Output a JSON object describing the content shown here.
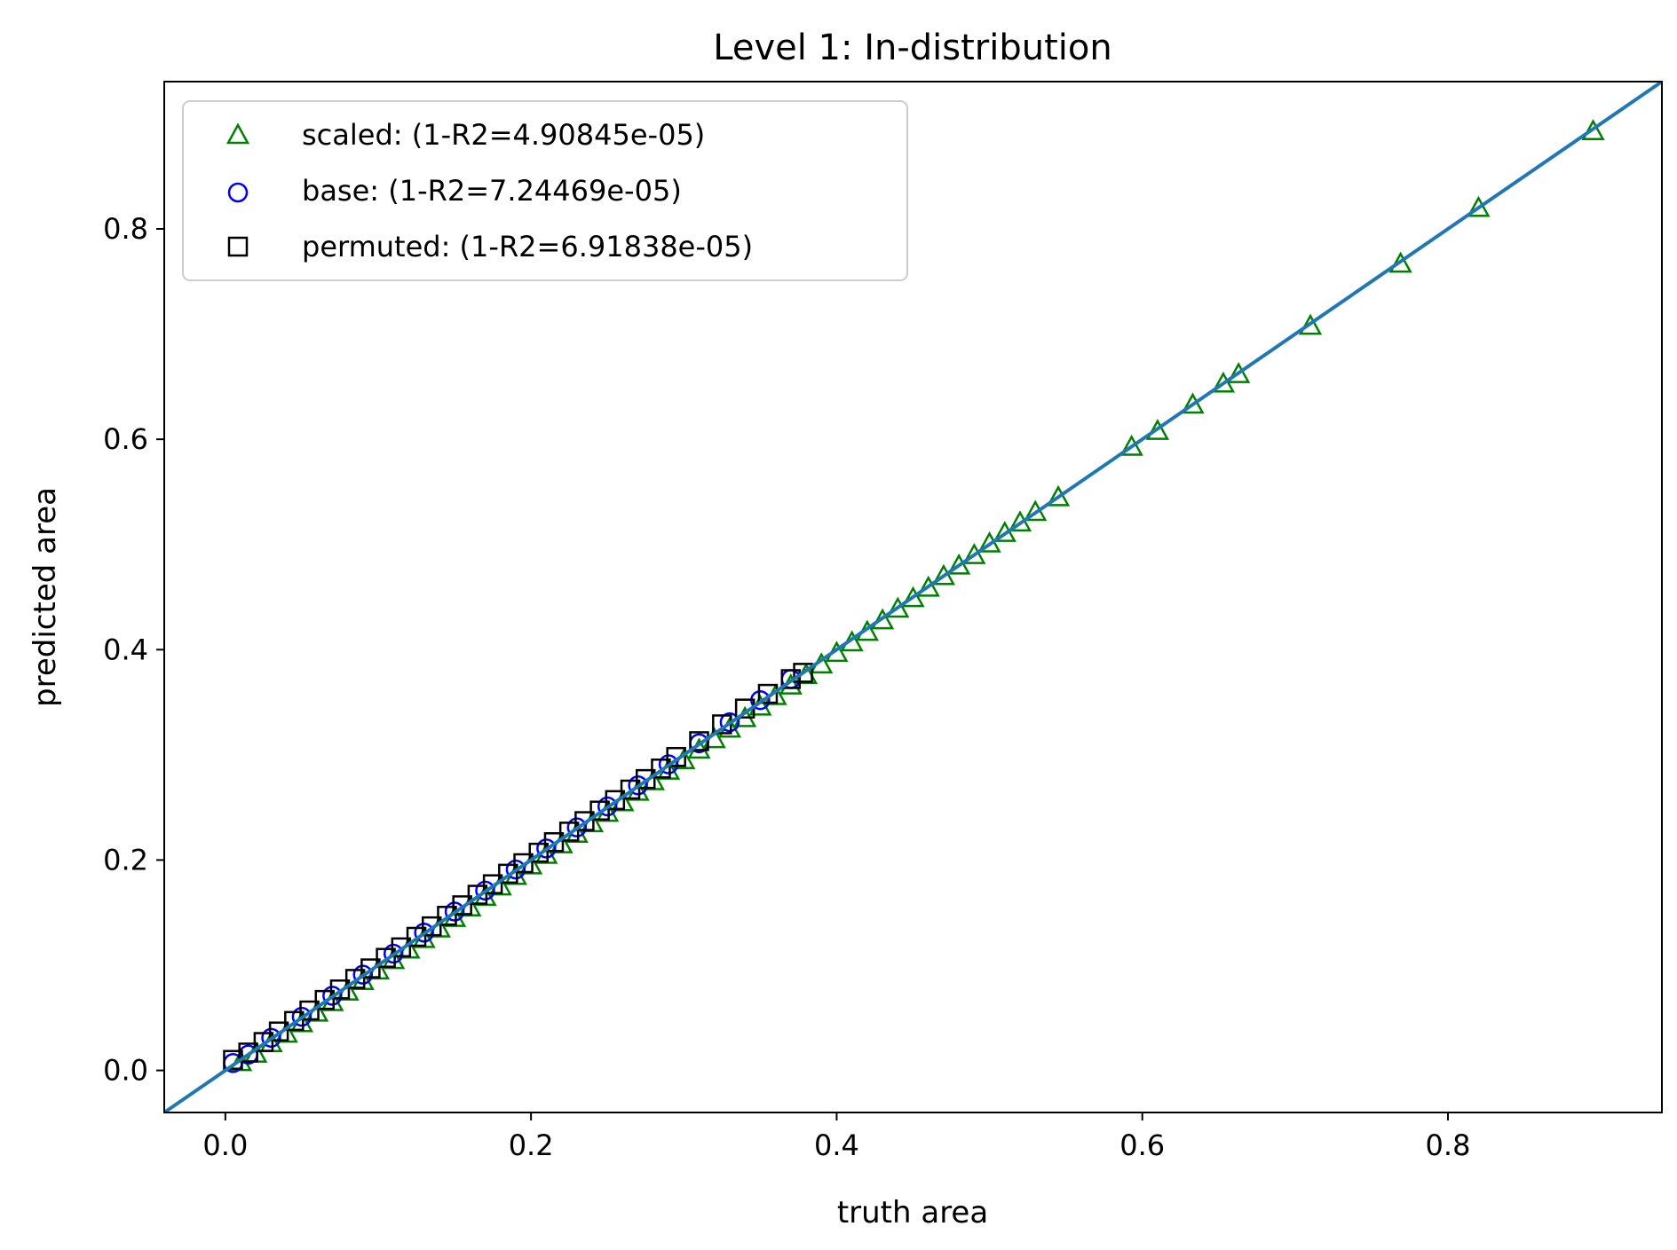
{
  "chart_data": {
    "type": "scatter",
    "title": "Level 1: In-distribution",
    "xlabel": "truth area",
    "ylabel": "predicted area",
    "xlim": [
      -0.04,
      0.94
    ],
    "ylim": [
      -0.04,
      0.94
    ],
    "xticks": [
      "0.0",
      "0.2",
      "0.4",
      "0.6",
      "0.8"
    ],
    "yticks": [
      "0.0",
      "0.2",
      "0.4",
      "0.6",
      "0.8"
    ],
    "xtick_values": [
      0.0,
      0.2,
      0.4,
      0.6,
      0.8
    ],
    "ytick_values": [
      0.0,
      0.2,
      0.4,
      0.6,
      0.8
    ],
    "grid": false,
    "legend_position": "top-left",
    "reference_line": {
      "from": [
        -0.04,
        -0.04
      ],
      "to": [
        0.94,
        0.94
      ],
      "color": "#1f77b4"
    },
    "series": [
      {
        "name": "scaled: (1-R2=4.90845e-05)",
        "marker": "triangle",
        "color": "#008000",
        "points": [
          [
            0.01,
            0.008
          ],
          [
            0.02,
            0.016
          ],
          [
            0.03,
            0.026
          ],
          [
            0.04,
            0.035
          ],
          [
            0.05,
            0.045
          ],
          [
            0.06,
            0.055
          ],
          [
            0.07,
            0.065
          ],
          [
            0.08,
            0.075
          ],
          [
            0.09,
            0.085
          ],
          [
            0.1,
            0.095
          ],
          [
            0.11,
            0.105
          ],
          [
            0.12,
            0.115
          ],
          [
            0.13,
            0.125
          ],
          [
            0.14,
            0.135
          ],
          [
            0.15,
            0.145
          ],
          [
            0.16,
            0.155
          ],
          [
            0.17,
            0.165
          ],
          [
            0.18,
            0.175
          ],
          [
            0.19,
            0.185
          ],
          [
            0.2,
            0.195
          ],
          [
            0.21,
            0.205
          ],
          [
            0.22,
            0.215
          ],
          [
            0.23,
            0.225
          ],
          [
            0.24,
            0.235
          ],
          [
            0.25,
            0.245
          ],
          [
            0.26,
            0.255
          ],
          [
            0.27,
            0.265
          ],
          [
            0.28,
            0.275
          ],
          [
            0.29,
            0.285
          ],
          [
            0.3,
            0.295
          ],
          [
            0.31,
            0.305
          ],
          [
            0.32,
            0.315
          ],
          [
            0.33,
            0.325
          ],
          [
            0.34,
            0.335
          ],
          [
            0.35,
            0.346
          ],
          [
            0.36,
            0.356
          ],
          [
            0.37,
            0.366
          ],
          [
            0.38,
            0.376
          ],
          [
            0.39,
            0.386
          ],
          [
            0.4,
            0.397
          ],
          [
            0.41,
            0.407
          ],
          [
            0.42,
            0.417
          ],
          [
            0.43,
            0.428
          ],
          [
            0.44,
            0.439
          ],
          [
            0.45,
            0.449
          ],
          [
            0.46,
            0.459
          ],
          [
            0.47,
            0.47
          ],
          [
            0.48,
            0.48
          ],
          [
            0.49,
            0.49
          ],
          [
            0.5,
            0.501
          ],
          [
            0.51,
            0.511
          ],
          [
            0.52,
            0.521
          ],
          [
            0.53,
            0.531
          ],
          [
            0.545,
            0.545
          ],
          [
            0.593,
            0.593
          ],
          [
            0.61,
            0.608
          ],
          [
            0.633,
            0.633
          ],
          [
            0.653,
            0.653
          ],
          [
            0.663,
            0.662
          ],
          [
            0.71,
            0.708
          ],
          [
            0.769,
            0.767
          ],
          [
            0.82,
            0.82
          ],
          [
            0.895,
            0.893
          ]
        ]
      },
      {
        "name": "base: (1-R2=7.24469e-05)",
        "marker": "circle",
        "color": "#0000ff",
        "points": [
          [
            0.005,
            0.007
          ],
          [
            0.015,
            0.015
          ],
          [
            0.03,
            0.031
          ],
          [
            0.05,
            0.051
          ],
          [
            0.07,
            0.071
          ],
          [
            0.09,
            0.091
          ],
          [
            0.11,
            0.111
          ],
          [
            0.13,
            0.131
          ],
          [
            0.15,
            0.151
          ],
          [
            0.17,
            0.171
          ],
          [
            0.19,
            0.191
          ],
          [
            0.21,
            0.211
          ],
          [
            0.23,
            0.231
          ],
          [
            0.25,
            0.251
          ],
          [
            0.27,
            0.271
          ],
          [
            0.29,
            0.291
          ],
          [
            0.31,
            0.311
          ],
          [
            0.33,
            0.331
          ],
          [
            0.35,
            0.352
          ],
          [
            0.37,
            0.372
          ]
        ]
      },
      {
        "name": "permuted: (1-R2=6.91838e-05)",
        "marker": "square",
        "color": "#000000",
        "points": [
          [
            0.005,
            0.01
          ],
          [
            0.015,
            0.017
          ],
          [
            0.025,
            0.027
          ],
          [
            0.035,
            0.037
          ],
          [
            0.045,
            0.047
          ],
          [
            0.055,
            0.057
          ],
          [
            0.065,
            0.067
          ],
          [
            0.075,
            0.077
          ],
          [
            0.085,
            0.087
          ],
          [
            0.095,
            0.097
          ],
          [
            0.105,
            0.107
          ],
          [
            0.115,
            0.117
          ],
          [
            0.125,
            0.127
          ],
          [
            0.135,
            0.137
          ],
          [
            0.145,
            0.147
          ],
          [
            0.155,
            0.157
          ],
          [
            0.165,
            0.167
          ],
          [
            0.175,
            0.177
          ],
          [
            0.185,
            0.187
          ],
          [
            0.195,
            0.197
          ],
          [
            0.205,
            0.207
          ],
          [
            0.215,
            0.217
          ],
          [
            0.225,
            0.227
          ],
          [
            0.235,
            0.237
          ],
          [
            0.245,
            0.247
          ],
          [
            0.255,
            0.257
          ],
          [
            0.265,
            0.267
          ],
          [
            0.275,
            0.277
          ],
          [
            0.285,
            0.287
          ],
          [
            0.295,
            0.298
          ],
          [
            0.31,
            0.313
          ],
          [
            0.325,
            0.329
          ],
          [
            0.34,
            0.344
          ],
          [
            0.355,
            0.358
          ],
          [
            0.37,
            0.372
          ],
          [
            0.378,
            0.378
          ]
        ]
      }
    ]
  }
}
